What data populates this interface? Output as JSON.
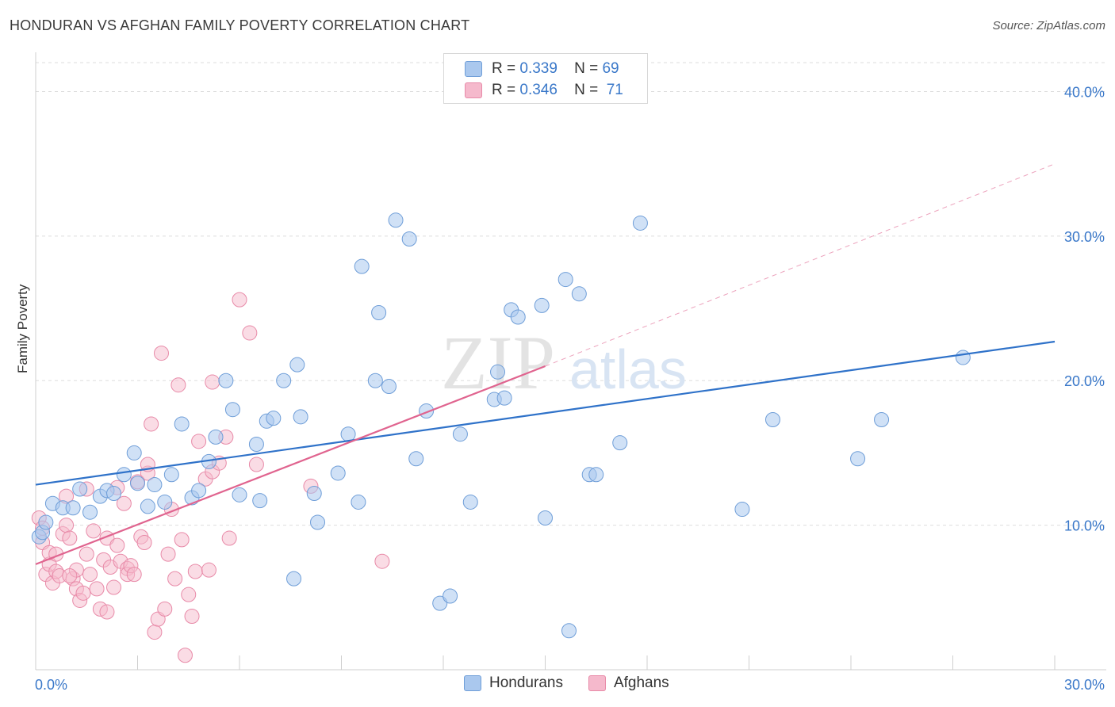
{
  "header": {
    "title": "HONDURAN VS AFGHAN FAMILY POVERTY CORRELATION CHART",
    "source": "Source: ZipAtlas.com"
  },
  "watermark": {
    "zip": "ZIP",
    "atlas": "atlas"
  },
  "legend": {
    "hondurans": {
      "r_label": "R =",
      "r_value": "0.339",
      "n_label": "N =",
      "n_value": "69"
    },
    "afghans": {
      "r_label": "R =",
      "r_value": "0.346",
      "n_label": "N =",
      "n_value": "71"
    }
  },
  "bottom_legend": {
    "hondurans": "Hondurans",
    "afghans": "Afghans"
  },
  "colors": {
    "blue_fill": "#aac8ee",
    "blue_stroke": "#6f9ed8",
    "blue_line": "#2f72c9",
    "pink_fill": "#f5b9cc",
    "pink_stroke": "#e88aa8",
    "pink_line": "#e0648f",
    "axis_label": "#3a78c9"
  },
  "chart_data": {
    "type": "scatter",
    "title": "HONDURAN VS AFGHAN FAMILY POVERTY CORRELATION CHART",
    "xlabel": "",
    "ylabel": "Family Poverty",
    "xlim": [
      0,
      30
    ],
    "ylim": [
      0,
      42
    ],
    "x_tick_labels": [
      "0.0%",
      "30.0%"
    ],
    "y_ticks": [
      10,
      20,
      30,
      40
    ],
    "y_tick_labels": [
      "10.0%",
      "20.0%",
      "30.0%",
      "40.0%"
    ],
    "grid": true,
    "series": [
      {
        "name": "Hondurans",
        "color": "#aac8ee",
        "r": 0.339,
        "n": 69,
        "trend": {
          "x": [
            0,
            30
          ],
          "y": [
            12.8,
            22.7
          ]
        },
        "points": [
          [
            0.1,
            9.2
          ],
          [
            0.2,
            9.5
          ],
          [
            0.3,
            10.2
          ],
          [
            0.5,
            11.5
          ],
          [
            0.8,
            11.2
          ],
          [
            1.1,
            11.2
          ],
          [
            1.3,
            12.5
          ],
          [
            1.6,
            10.9
          ],
          [
            1.9,
            12.0
          ],
          [
            2.1,
            12.4
          ],
          [
            2.3,
            12.2
          ],
          [
            2.6,
            13.5
          ],
          [
            2.9,
            15.0
          ],
          [
            3.0,
            12.9
          ],
          [
            3.3,
            11.3
          ],
          [
            3.5,
            12.8
          ],
          [
            3.8,
            11.6
          ],
          [
            4.0,
            13.5
          ],
          [
            4.3,
            17.0
          ],
          [
            4.6,
            11.9
          ],
          [
            4.8,
            12.4
          ],
          [
            5.1,
            14.4
          ],
          [
            5.3,
            16.1
          ],
          [
            5.6,
            20.0
          ],
          [
            5.8,
            18.0
          ],
          [
            6.0,
            12.1
          ],
          [
            6.5,
            15.6
          ],
          [
            6.6,
            11.7
          ],
          [
            6.8,
            17.2
          ],
          [
            7.0,
            17.4
          ],
          [
            7.3,
            20.0
          ],
          [
            7.6,
            6.3
          ],
          [
            7.7,
            21.1
          ],
          [
            7.8,
            17.5
          ],
          [
            8.2,
            12.2
          ],
          [
            8.3,
            10.2
          ],
          [
            8.9,
            13.6
          ],
          [
            9.2,
            16.3
          ],
          [
            9.5,
            11.6
          ],
          [
            9.6,
            27.9
          ],
          [
            10.0,
            20.0
          ],
          [
            10.1,
            24.7
          ],
          [
            10.4,
            19.6
          ],
          [
            10.6,
            31.1
          ],
          [
            11.0,
            29.8
          ],
          [
            11.2,
            14.6
          ],
          [
            11.5,
            17.9
          ],
          [
            11.9,
            4.6
          ],
          [
            12.2,
            5.1
          ],
          [
            12.5,
            16.3
          ],
          [
            12.8,
            11.6
          ],
          [
            13.5,
            18.7
          ],
          [
            13.6,
            20.6
          ],
          [
            13.8,
            18.8
          ],
          [
            14.0,
            24.9
          ],
          [
            14.2,
            24.4
          ],
          [
            14.9,
            25.2
          ],
          [
            15.0,
            10.5
          ],
          [
            15.6,
            27.0
          ],
          [
            15.7,
            2.7
          ],
          [
            16.0,
            26.0
          ],
          [
            16.3,
            13.5
          ],
          [
            16.5,
            13.5
          ],
          [
            17.2,
            15.7
          ],
          [
            17.8,
            30.9
          ],
          [
            20.8,
            11.1
          ],
          [
            21.7,
            17.3
          ],
          [
            24.2,
            14.6
          ],
          [
            24.9,
            17.3
          ],
          [
            27.3,
            21.6
          ]
        ]
      },
      {
        "name": "Afghans",
        "color": "#f5b9cc",
        "r": 0.346,
        "n": 71,
        "trend": {
          "x": [
            0,
            15
          ],
          "y": [
            7.3,
            21.0
          ]
        },
        "trend_extension": {
          "x": [
            15,
            30
          ],
          "y": [
            21.0,
            35.0
          ]
        },
        "points": [
          [
            0.1,
            10.5
          ],
          [
            0.2,
            9.8
          ],
          [
            0.2,
            8.8
          ],
          [
            0.3,
            6.6
          ],
          [
            0.4,
            7.3
          ],
          [
            0.4,
            8.1
          ],
          [
            0.5,
            6.0
          ],
          [
            0.6,
            6.8
          ],
          [
            0.7,
            6.5
          ],
          [
            0.8,
            9.4
          ],
          [
            0.9,
            10.0
          ],
          [
            0.9,
            12.0
          ],
          [
            1.0,
            9.1
          ],
          [
            1.1,
            6.3
          ],
          [
            1.2,
            5.6
          ],
          [
            1.2,
            6.9
          ],
          [
            1.3,
            4.8
          ],
          [
            1.4,
            5.3
          ],
          [
            1.5,
            8.0
          ],
          [
            1.5,
            12.5
          ],
          [
            1.6,
            6.6
          ],
          [
            1.7,
            9.6
          ],
          [
            1.8,
            5.6
          ],
          [
            1.9,
            4.2
          ],
          [
            2.0,
            7.6
          ],
          [
            2.1,
            4.0
          ],
          [
            2.1,
            9.1
          ],
          [
            2.2,
            7.1
          ],
          [
            2.3,
            5.7
          ],
          [
            2.4,
            12.6
          ],
          [
            2.5,
            7.5
          ],
          [
            2.6,
            11.5
          ],
          [
            2.7,
            7.0
          ],
          [
            2.7,
            6.6
          ],
          [
            2.8,
            7.2
          ],
          [
            2.9,
            6.6
          ],
          [
            3.0,
            13.0
          ],
          [
            3.1,
            9.2
          ],
          [
            3.2,
            8.8
          ],
          [
            3.3,
            13.6
          ],
          [
            3.3,
            14.2
          ],
          [
            3.4,
            17.0
          ],
          [
            3.5,
            2.6
          ],
          [
            3.6,
            3.5
          ],
          [
            3.7,
            21.9
          ],
          [
            3.8,
            4.2
          ],
          [
            3.9,
            8.0
          ],
          [
            4.0,
            11.1
          ],
          [
            4.1,
            6.3
          ],
          [
            4.2,
            19.7
          ],
          [
            4.3,
            9.0
          ],
          [
            4.4,
            1.0
          ],
          [
            4.5,
            5.2
          ],
          [
            4.6,
            3.7
          ],
          [
            4.7,
            6.8
          ],
          [
            4.8,
            15.8
          ],
          [
            5.0,
            13.2
          ],
          [
            5.1,
            6.9
          ],
          [
            5.2,
            13.7
          ],
          [
            5.2,
            19.9
          ],
          [
            5.4,
            14.3
          ],
          [
            5.6,
            16.1
          ],
          [
            5.7,
            9.1
          ],
          [
            6.0,
            25.6
          ],
          [
            6.3,
            23.3
          ],
          [
            6.5,
            14.2
          ],
          [
            8.1,
            12.7
          ],
          [
            10.2,
            7.5
          ],
          [
            0.6,
            8.0
          ],
          [
            1.0,
            6.5
          ],
          [
            2.4,
            8.6
          ]
        ]
      }
    ]
  }
}
